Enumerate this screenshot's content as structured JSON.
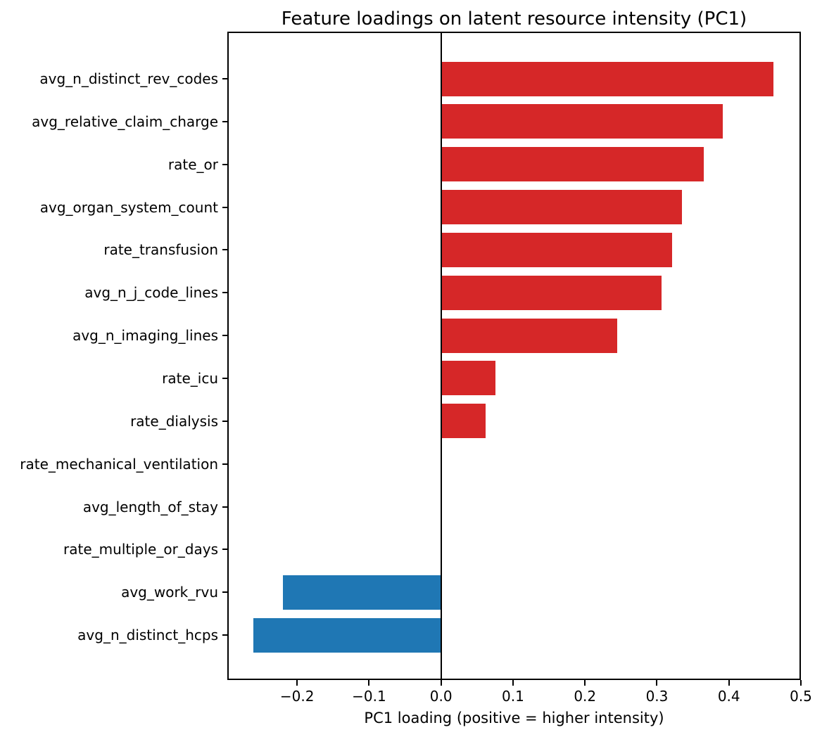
{
  "figure": {
    "title": "Feature loadings on latent resource intensity (PC1)",
    "xlabel": "PC1 loading (positive = higher intensity)"
  },
  "chart_data": {
    "type": "bar",
    "orientation": "horizontal",
    "title": "Feature loadings on latent resource intensity (PC1)",
    "xlabel": "PC1 loading (positive = higher intensity)",
    "ylabel": "",
    "categories": [
      "avg_n_distinct_rev_codes",
      "avg_relative_claim_charge",
      "rate_or",
      "avg_organ_system_count",
      "rate_transfusion",
      "avg_n_j_code_lines",
      "avg_n_imaging_lines",
      "rate_icu",
      "rate_dialysis",
      "rate_mechanical_ventilation",
      "avg_length_of_stay",
      "rate_multiple_or_days",
      "avg_work_rvu",
      "avg_n_distinct_hcps"
    ],
    "values": [
      0.462,
      0.391,
      0.365,
      0.335,
      0.321,
      0.306,
      0.245,
      0.076,
      0.062,
      0.0,
      0.0,
      0.0,
      -0.22,
      -0.261
    ],
    "xlim": [
      -0.297,
      0.5
    ],
    "x_ticks": [
      -0.2,
      -0.1,
      0.0,
      0.1,
      0.2,
      0.3,
      0.4,
      0.5
    ],
    "x_tick_labels": [
      "−0.2",
      "−0.1",
      "0.0",
      "0.1",
      "0.2",
      "0.3",
      "0.4",
      "0.5"
    ],
    "grid": false,
    "legend": false,
    "colors": {
      "positive": "#d62728",
      "negative": "#1f77b4",
      "zero_line": "#000000",
      "spine": "#000000",
      "text": "#000000",
      "background": "#ffffff"
    }
  }
}
